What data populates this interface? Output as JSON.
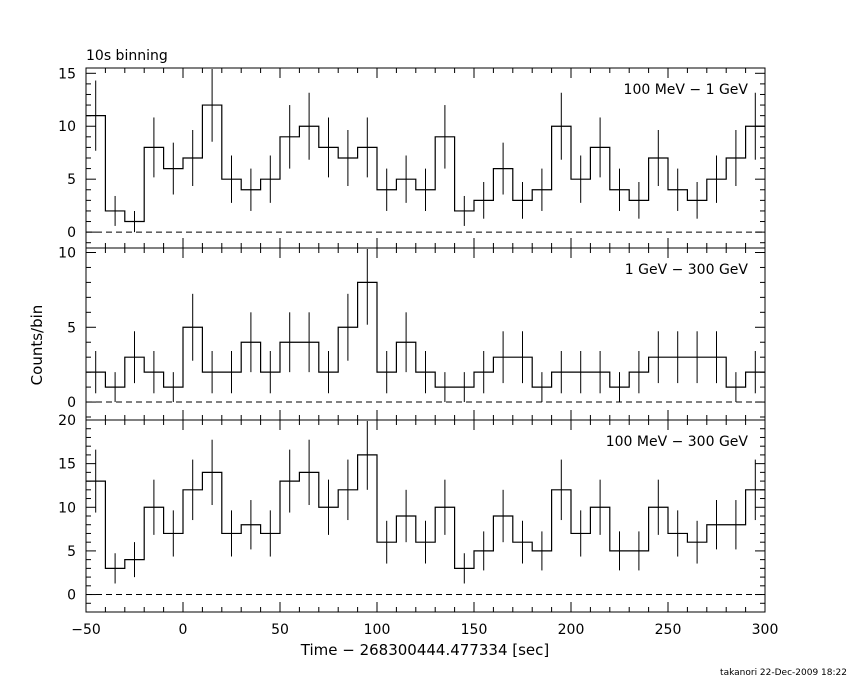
{
  "header": {
    "binning_label": "10s binning",
    "footer": "takanori 22-Dec-2009 18:22"
  },
  "chart_data": {
    "type": "line",
    "shared_x_axis": {
      "label": "Time − 268300444.477334 [sec]",
      "range": [
        -50,
        300
      ],
      "tick_labels": [
        "−50",
        "0",
        "50",
        "100",
        "150",
        "200",
        "250",
        "300"
      ]
    },
    "y_axis_label": "Counts/bin",
    "bins": {
      "start": -50,
      "width": 10,
      "count": 35
    },
    "panels": [
      {
        "label": "100 MeV − 1 GeV",
        "ylim": [
          -1.5,
          15.5
        ],
        "yticks": [
          0,
          5,
          10,
          15
        ],
        "values": [
          11,
          2,
          1,
          8,
          6,
          7,
          12,
          5,
          4,
          5,
          9,
          10,
          8,
          7,
          8,
          4,
          5,
          4,
          9,
          2,
          3,
          6,
          3,
          4,
          10,
          5,
          8,
          4,
          3,
          7,
          4,
          3,
          5,
          7,
          10
        ]
      },
      {
        "label": "1 GeV − 300 GeV",
        "ylim": [
          -1.2,
          10.3
        ],
        "yticks": [
          0,
          5,
          10
        ],
        "values": [
          2,
          1,
          3,
          2,
          1,
          5,
          2,
          2,
          4,
          2,
          4,
          4,
          2,
          5,
          8,
          2,
          4,
          2,
          1,
          1,
          2,
          3,
          3,
          1,
          2,
          2,
          2,
          1,
          2,
          3,
          3,
          3,
          3,
          1,
          2
        ]
      },
      {
        "label": "100 MeV − 300 GeV",
        "ylim": [
          -2,
          20
        ],
        "yticks": [
          0,
          5,
          10,
          15,
          20
        ],
        "values": [
          13,
          3,
          4,
          10,
          7,
          12,
          14,
          7,
          8,
          7,
          13,
          14,
          10,
          12,
          16,
          6,
          9,
          6,
          10,
          3,
          5,
          9,
          6,
          5,
          12,
          7,
          10,
          5,
          5,
          10,
          7,
          6,
          8,
          8,
          12
        ]
      }
    ]
  }
}
